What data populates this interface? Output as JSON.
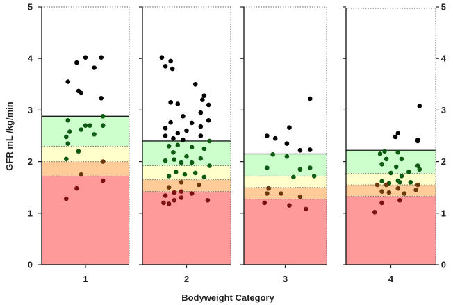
{
  "chart_data": {
    "type": "scatter",
    "title": "",
    "xlabel": "Bodyweight Category",
    "ylabel": "GFR mL /kg/min",
    "ylim": [
      0,
      5
    ],
    "yticks": [
      "0",
      "1",
      "2",
      "3",
      "4",
      "5"
    ],
    "grid": false,
    "legend": "none",
    "colors": {
      "red_band": "#ff9a9a",
      "orange_band": "#ffcc99",
      "yellow_band": "#ffffcc",
      "green_band": "#ccffcc",
      "point_black": "#000000",
      "point_green": "#0e5a12",
      "point_brown": "#6a3a0c",
      "point_red": "#7a1010"
    },
    "panels": [
      {
        "category": "1",
        "bands": {
          "red_top": 1.72,
          "orange_top": 2.0,
          "yellow_top": 2.3,
          "green_top": 2.88
        },
        "points": [
          [
            0.5,
            4.02
          ],
          [
            0.68,
            4.02
          ],
          [
            0.4,
            3.92
          ],
          [
            0.6,
            3.82
          ],
          [
            0.3,
            3.55
          ],
          [
            0.42,
            3.37
          ],
          [
            0.45,
            3.33
          ],
          [
            0.68,
            3.23
          ],
          [
            0.7,
            2.88
          ],
          [
            0.55,
            2.7
          ],
          [
            0.3,
            2.8
          ],
          [
            0.45,
            2.62
          ],
          [
            0.5,
            2.7
          ],
          [
            0.7,
            2.7
          ],
          [
            0.32,
            2.58
          ],
          [
            0.28,
            2.48
          ],
          [
            0.6,
            2.53
          ],
          [
            0.3,
            2.35
          ],
          [
            0.28,
            2.05
          ],
          [
            0.42,
            2.2
          ],
          [
            0.7,
            2.0
          ],
          [
            0.45,
            1.75
          ],
          [
            0.7,
            1.63
          ],
          [
            0.4,
            1.48
          ],
          [
            0.28,
            1.28
          ]
        ]
      },
      {
        "category": "2",
        "bands": {
          "red_top": 1.42,
          "orange_top": 1.65,
          "yellow_top": 1.92,
          "green_top": 2.4
        },
        "points": [
          [
            0.22,
            4.02
          ],
          [
            0.32,
            3.95
          ],
          [
            0.26,
            3.85
          ],
          [
            0.34,
            3.8
          ],
          [
            0.6,
            3.5
          ],
          [
            0.7,
            3.28
          ],
          [
            0.68,
            3.2
          ],
          [
            0.32,
            3.15
          ],
          [
            0.4,
            3.12
          ],
          [
            0.75,
            3.1
          ],
          [
            0.66,
            2.95
          ],
          [
            0.46,
            2.88
          ],
          [
            0.75,
            2.8
          ],
          [
            0.32,
            2.76
          ],
          [
            0.56,
            2.75
          ],
          [
            0.66,
            2.68
          ],
          [
            0.26,
            2.65
          ],
          [
            0.5,
            2.6
          ],
          [
            0.4,
            2.55
          ],
          [
            0.26,
            2.5
          ],
          [
            0.66,
            2.5
          ],
          [
            0.35,
            2.45
          ],
          [
            0.46,
            2.42
          ],
          [
            0.76,
            2.4
          ],
          [
            0.3,
            2.3
          ],
          [
            0.4,
            2.32
          ],
          [
            0.56,
            2.28
          ],
          [
            0.7,
            2.25
          ],
          [
            0.35,
            2.18
          ],
          [
            0.5,
            2.1
          ],
          [
            0.66,
            2.06
          ],
          [
            0.36,
            2.04
          ],
          [
            0.26,
            2.02
          ],
          [
            0.44,
            1.98
          ],
          [
            0.56,
            1.98
          ],
          [
            0.76,
            1.92
          ],
          [
            0.38,
            1.8
          ],
          [
            0.6,
            1.78
          ],
          [
            0.3,
            1.72
          ],
          [
            0.48,
            1.75
          ],
          [
            0.7,
            1.7
          ],
          [
            0.44,
            1.6
          ],
          [
            0.64,
            1.55
          ],
          [
            0.3,
            1.5
          ],
          [
            0.44,
            1.42
          ],
          [
            0.36,
            1.4
          ],
          [
            0.56,
            1.38
          ],
          [
            0.26,
            1.34
          ],
          [
            0.44,
            1.3
          ],
          [
            0.36,
            1.25
          ],
          [
            0.74,
            1.25
          ],
          [
            0.24,
            1.2
          ],
          [
            0.3,
            1.18
          ]
        ]
      },
      {
        "category": "3",
        "bands": {
          "red_top": 1.27,
          "orange_top": 1.5,
          "yellow_top": 1.72,
          "green_top": 2.15
        },
        "points": [
          [
            0.8,
            3.22
          ],
          [
            0.55,
            2.66
          ],
          [
            0.28,
            2.5
          ],
          [
            0.38,
            2.45
          ],
          [
            0.52,
            2.35
          ],
          [
            0.8,
            2.23
          ],
          [
            0.68,
            2.22
          ],
          [
            0.35,
            2.14
          ],
          [
            0.52,
            2.1
          ],
          [
            0.28,
            1.88
          ],
          [
            0.8,
            1.88
          ],
          [
            0.68,
            1.85
          ],
          [
            0.85,
            1.72
          ],
          [
            0.6,
            1.7
          ],
          [
            0.3,
            1.48
          ],
          [
            0.45,
            1.38
          ],
          [
            0.28,
            1.38
          ],
          [
            0.68,
            1.32
          ],
          [
            0.25,
            1.2
          ],
          [
            0.55,
            1.15
          ],
          [
            0.75,
            1.08
          ]
        ]
      },
      {
        "category": "4",
        "bands": {
          "red_top": 1.33,
          "orange_top": 1.55,
          "yellow_top": 1.77,
          "green_top": 2.22
        },
        "points": [
          [
            0.82,
            3.08
          ],
          [
            0.58,
            2.55
          ],
          [
            0.55,
            2.48
          ],
          [
            0.8,
            2.42
          ],
          [
            0.8,
            2.4
          ],
          [
            0.43,
            2.2
          ],
          [
            0.58,
            2.18
          ],
          [
            0.38,
            2.15
          ],
          [
            0.45,
            2.05
          ],
          [
            0.62,
            2.05
          ],
          [
            0.4,
            1.95
          ],
          [
            0.56,
            1.9
          ],
          [
            0.8,
            1.92
          ],
          [
            0.82,
            1.85
          ],
          [
            0.7,
            1.8
          ],
          [
            0.5,
            1.78
          ],
          [
            0.62,
            1.72
          ],
          [
            0.4,
            1.62
          ],
          [
            0.48,
            1.58
          ],
          [
            0.58,
            1.63
          ],
          [
            0.6,
            1.6
          ],
          [
            0.35,
            1.55
          ],
          [
            0.45,
            1.55
          ],
          [
            0.72,
            1.6
          ],
          [
            0.8,
            1.55
          ],
          [
            0.58,
            1.48
          ],
          [
            0.78,
            1.45
          ],
          [
            0.4,
            1.42
          ],
          [
            0.48,
            1.4
          ],
          [
            0.65,
            1.38
          ],
          [
            0.6,
            1.25
          ],
          [
            0.4,
            1.2
          ],
          [
            0.32,
            1.02
          ]
        ]
      }
    ]
  }
}
